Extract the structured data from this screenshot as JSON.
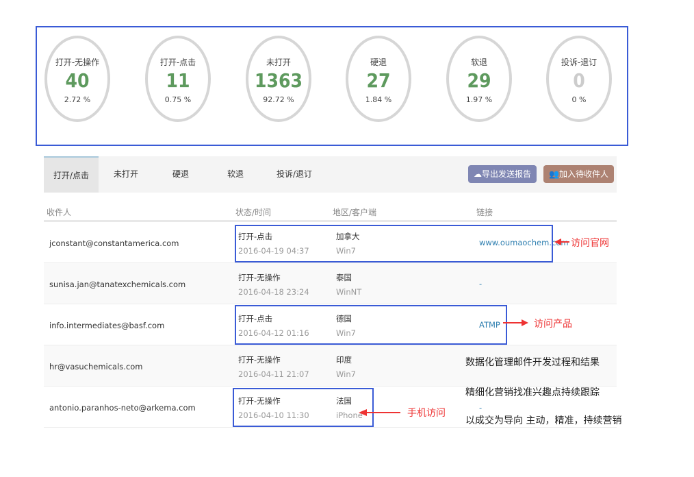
{
  "stats": [
    {
      "label": "打开-无操作",
      "value": "40",
      "percent": "2.72 %"
    },
    {
      "label": "打开-点击",
      "value": "11",
      "percent": "0.75 %"
    },
    {
      "label": "未打开",
      "value": "1363",
      "percent": "92.72 %"
    },
    {
      "label": "硬退",
      "value": "27",
      "percent": "1.84 %"
    },
    {
      "label": "软退",
      "value": "29",
      "percent": "1.97 %"
    },
    {
      "label": "投诉-退订",
      "value": "0",
      "percent": "0 %"
    }
  ],
  "tabs": [
    "打开/点击",
    "未打开",
    "硬退",
    "软退",
    "投诉/退订"
  ],
  "buttons": {
    "export": "导出发送报告",
    "add": "加入待收件人"
  },
  "columns": [
    "收件人",
    "状态/时间",
    "地区/客户端",
    "链接"
  ],
  "rows": [
    {
      "email": "jconstant@constantamerica.com",
      "status": "打开-点击",
      "time": "2016-04-19 04:37",
      "region": "加拿大",
      "client": "Win7",
      "link": "www.oumaochem.com"
    },
    {
      "email": "sunisa.jan@tanatexchemicals.com",
      "status": "打开-无操作",
      "time": "2016-04-18 23:24",
      "region": "泰国",
      "client": "WinNT",
      "link": "-"
    },
    {
      "email": "info.intermediates@basf.com",
      "status": "打开-点击",
      "time": "2016-04-12 01:16",
      "region": "德国",
      "client": "Win7",
      "link": "ATMP"
    },
    {
      "email": "hr@vasuchemicals.com",
      "status": "打开-无操作",
      "time": "2016-04-11 21:07",
      "region": "印度",
      "client": "Win7",
      "link": ""
    },
    {
      "email": "antonio.paranhos-neto@arkema.com",
      "status": "打开-无操作",
      "time": "2016-04-10 11:30",
      "region": "法国",
      "client": "iPhone",
      "link": "-"
    }
  ],
  "annotations": {
    "site": "访问官网",
    "product": "访问产品",
    "mobile": "手机访问"
  },
  "notes": [
    "数据化管理邮件开发过程和结果",
    "精细化营销找准兴趣点持续跟踪",
    "以成交为导向  主动，精准，持续营销"
  ],
  "colors": {
    "number": "#5e9a5e",
    "export_btn": "#7f86b3",
    "add_btn": "#ad8272",
    "link": "#2f7fb0",
    "annotation_box": "#3a5bd6",
    "annotation_red": "#ee3333"
  }
}
